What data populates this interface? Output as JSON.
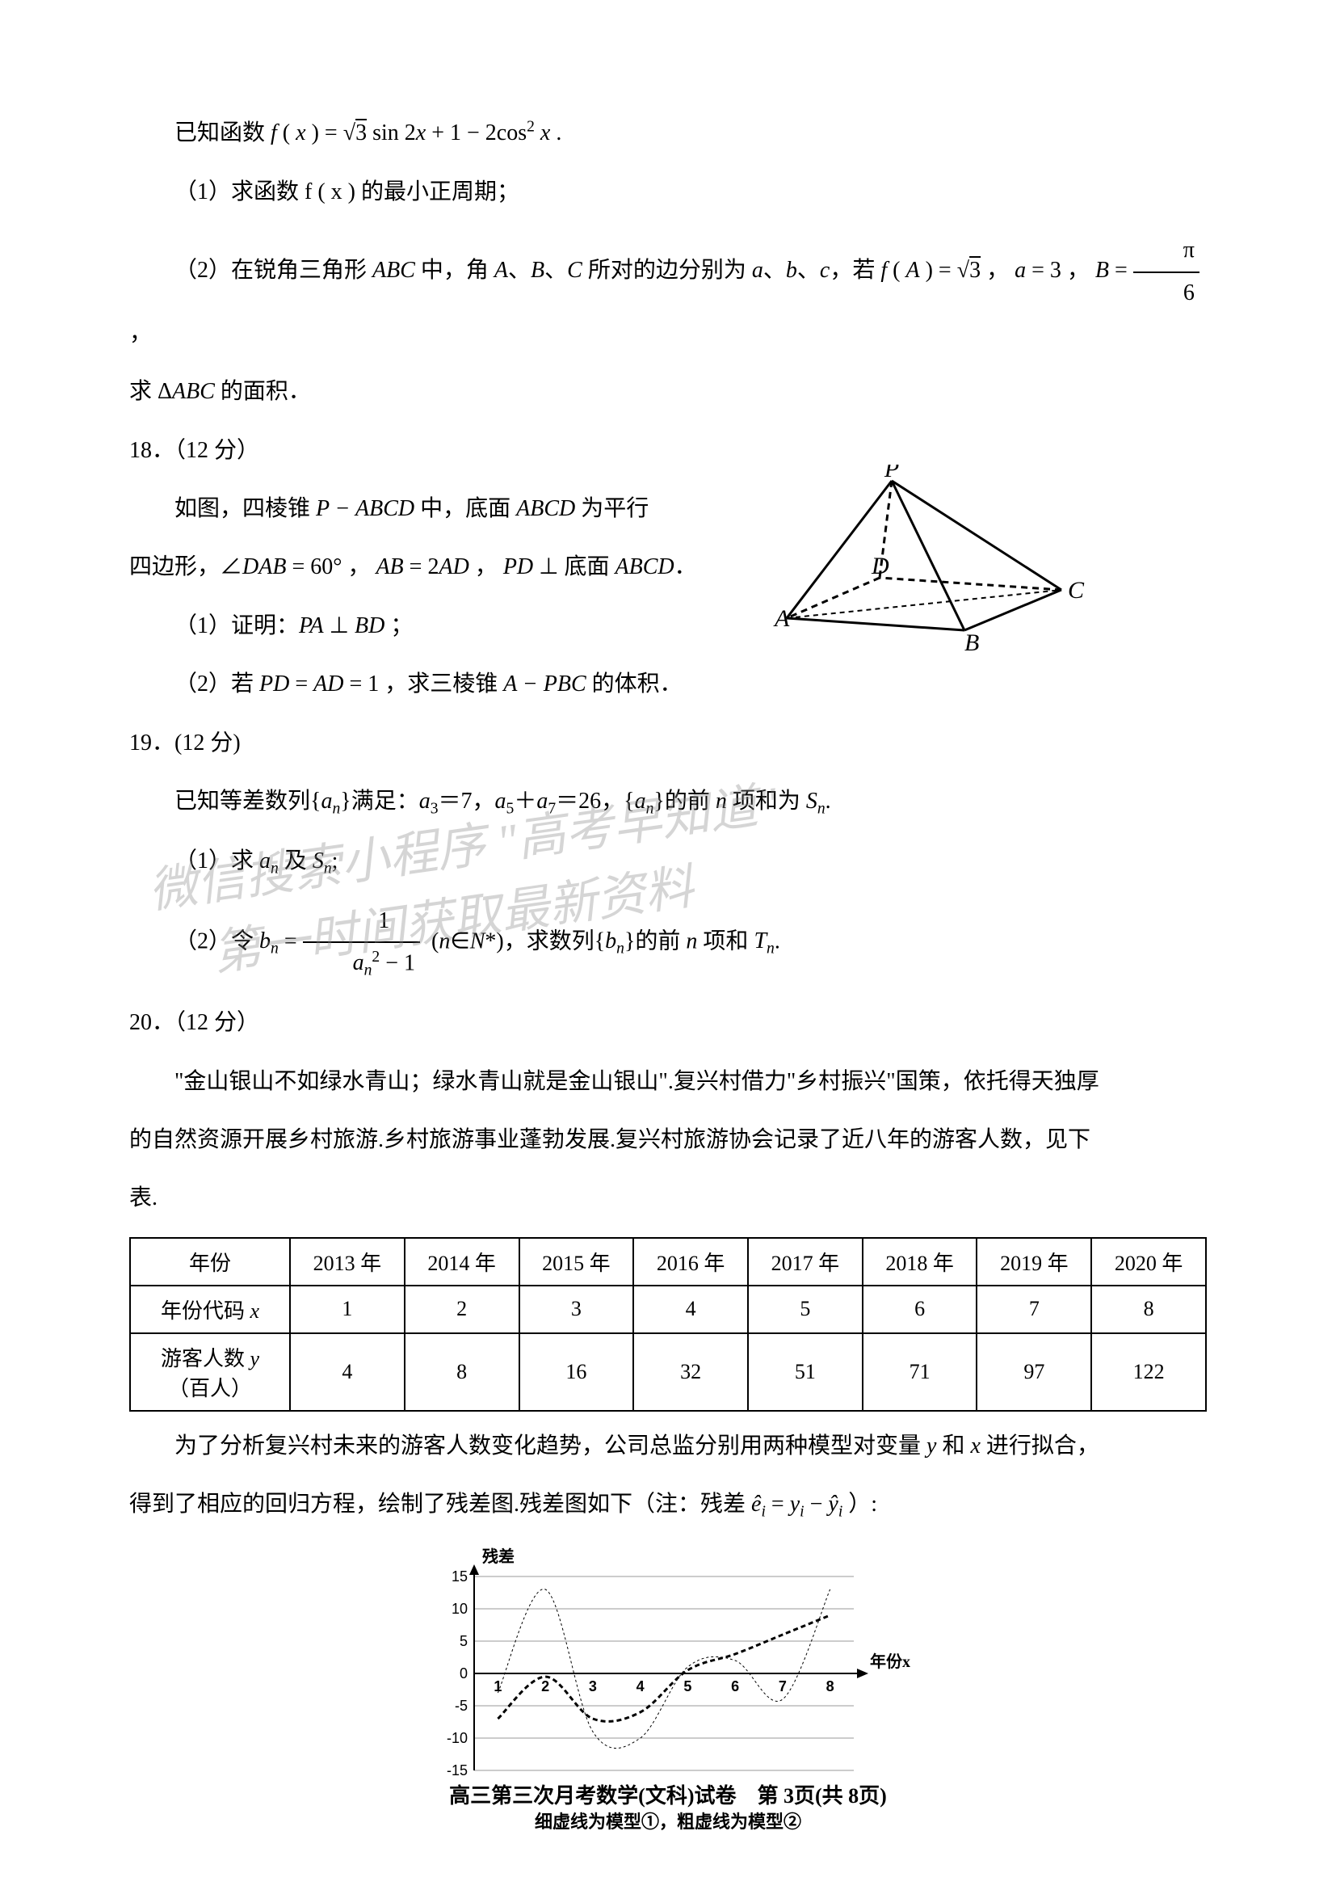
{
  "q17": {
    "intro": "已知函数 f ( x ) = √3 sin 2x + 1 − 2cos² x  .",
    "p1": "（1）求函数 f ( x ) 的最小正周期；",
    "p2_a": "（2）在锐角三角形 ABC 中，角 A、B、C 所对的边分别为 a、b、c，若 f ( A ) = √3 ， a = 3 ， B = ",
    "p2_frac_num": "π",
    "p2_frac_den": "6",
    "p2_b": " ，",
    "p3": "求 ΔABC 的面积．"
  },
  "q18": {
    "header": "18．（12 分）",
    "l1": "如图，四棱锥 P − ABCD 中，底面 ABCD 为平行",
    "l2": "四边形，∠DAB = 60° ， AB = 2AD ， PD ⊥ 底面 ABCD．",
    "p1": "（1）证明：PA ⊥ BD ；",
    "p2": "（2）若 PD = AD = 1 ，求三棱锥 A − PBC 的体积．",
    "pyramid": {
      "labels": {
        "P": "P",
        "A": "A",
        "B": "B",
        "C": "C",
        "D": "D"
      }
    }
  },
  "q19": {
    "header": "19．(12 分)",
    "l1": "已知等差数列{aₙ}满足：a₃＝7，a₅＋a₇＝26，{aₙ}的前 n 项和为 Sₙ.",
    "p1": "（1）求 aₙ 及 Sₙ;",
    "p2_a": "（2）令 bₙ = ",
    "p2_num": "1",
    "p2_den": "aₙ² − 1",
    "p2_b": "  (n∈N*)，求数列{bₙ}的前 n 项和 Tₙ."
  },
  "q20": {
    "header": "20．（12 分）",
    "l1": "\"金山银山不如绿水青山；绿水青山就是金山银山\".复兴村借力\"乡村振兴\"国策，依托得天独厚",
    "l2": "的自然资源开展乡村旅游.乡村旅游事业蓬勃发展.复兴村旅游协会记录了近八年的游客人数，见下",
    "l3": "表.",
    "table": {
      "columns": [
        "年份",
        "2013 年",
        "2014 年",
        "2015 年",
        "2016 年",
        "2017 年",
        "2018 年",
        "2019 年",
        "2020 年"
      ],
      "row_code_label": "年份代码 x",
      "row_code": [
        "1",
        "2",
        "3",
        "4",
        "5",
        "6",
        "7",
        "8"
      ],
      "row_y_label": "游客人数 y\n（百人）",
      "row_y": [
        "4",
        "8",
        "16",
        "32",
        "51",
        "71",
        "97",
        "122"
      ]
    },
    "after1": "为了分析复兴村未来的游客人数变化趋势，公司总监分别用两种模型对变量 y 和 x 进行拟合，",
    "after2_a": "得到了相应的回归方程，绘制了残差图.残差图如下（注：残差 ",
    "after2_b": "ê",
    "after2_c": "ᵢ = yᵢ − ŷᵢ ）:",
    "chart": {
      "ylabel": "残差",
      "xlabel": "年份x",
      "yticks": [
        -15,
        -10,
        -5,
        0,
        5,
        10,
        15
      ],
      "xticks": [
        1,
        2,
        3,
        4,
        5,
        6,
        7,
        8
      ],
      "caption": "细虚线为模型①，粗虚线为模型②",
      "series1": {
        "color": "#000000",
        "width": 1,
        "dash": "3,3",
        "points": [
          [
            1,
            -3
          ],
          [
            2,
            13
          ],
          [
            3,
            -9
          ],
          [
            4,
            -10
          ],
          [
            5,
            1
          ],
          [
            6,
            2
          ],
          [
            7,
            -4
          ],
          [
            8,
            13
          ]
        ]
      },
      "series2": {
        "color": "#000000",
        "width": 3,
        "dash": "6,4",
        "points": [
          [
            1,
            -7
          ],
          [
            2,
            -0.5
          ],
          [
            3,
            -7
          ],
          [
            4,
            -6
          ],
          [
            5,
            0.5
          ],
          [
            6,
            3
          ],
          [
            7,
            6
          ],
          [
            8,
            9
          ]
        ]
      },
      "bg": "#ffffff",
      "axis_color": "#000000"
    }
  },
  "watermark": {
    "line1": "微信搜索小程序  \"高考早知道\"",
    "line2": "第一时间获取最新资料"
  },
  "footer": "高三第三次月考数学(文科)试卷　第 3页(共 8页)"
}
